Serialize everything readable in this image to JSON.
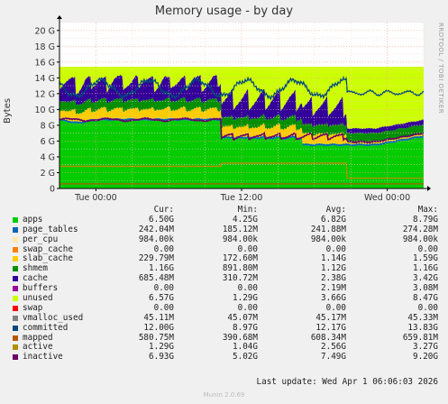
{
  "chart_data": {
    "type": "area",
    "title": "Memory usage - by day",
    "ylabel": "Bytes",
    "side_label": "RRDTOOL / TOBI OETIKER",
    "ylim": [
      0,
      21
    ],
    "yticks": [
      "0",
      "2 G",
      "4 G",
      "6 G",
      "8 G",
      "10 G",
      "12 G",
      "14 G",
      "16 G",
      "18 G",
      "20 G"
    ],
    "xlim_hours": [
      0,
      30
    ],
    "xticks": [
      {
        "label": "Tue 00:00",
        "hour": 3
      },
      {
        "label": "Tue 12:00",
        "hour": 15
      },
      {
        "label": "Wed 00:00",
        "hour": 27
      }
    ],
    "grid": true,
    "legend_columns": [
      "Cur:",
      "Min:",
      "Avg:",
      "Max:"
    ],
    "legend": [
      {
        "name": "apps",
        "color": "#00cc00",
        "cur": "6.50G",
        "min": "4.25G",
        "avg": "6.82G",
        "max": "8.79G"
      },
      {
        "name": "page_tables",
        "color": "#0066b3",
        "cur": "242.04M",
        "min": "185.12M",
        "avg": "241.88M",
        "max": "274.28M"
      },
      {
        "name": "per_cpu",
        "color": "#ffe9a8",
        "cur": "984.00k",
        "min": "984.00k",
        "avg": "984.00k",
        "max": "984.00k"
      },
      {
        "name": "swap_cache",
        "color": "#ff8000",
        "cur": "0.00",
        "min": "0.00",
        "avg": "0.00",
        "max": "0.00"
      },
      {
        "name": "slab_cache",
        "color": "#ffcc00",
        "cur": "229.79M",
        "min": "172.60M",
        "avg": "1.14G",
        "max": "1.59G"
      },
      {
        "name": "shmem",
        "color": "#008f00",
        "cur": "1.16G",
        "min": "891.80M",
        "avg": "1.12G",
        "max": "1.16G"
      },
      {
        "name": "cache",
        "color": "#330099",
        "cur": "685.48M",
        "min": "310.72M",
        "avg": "2.38G",
        "max": "3.42G"
      },
      {
        "name": "buffers",
        "color": "#990099",
        "cur": "0.00",
        "min": "0.00",
        "avg": "2.19M",
        "max": "3.08M"
      },
      {
        "name": "unused",
        "color": "#ccff00",
        "cur": "6.57G",
        "min": "1.29G",
        "avg": "3.66G",
        "max": "8.47G"
      },
      {
        "name": "swap",
        "color": "#ff0000",
        "cur": "0.00",
        "min": "0.00",
        "avg": "0.00",
        "max": "0.00"
      },
      {
        "name": "vmalloc_used",
        "color": "#808080",
        "cur": "45.11M",
        "min": "45.07M",
        "avg": "45.17M",
        "max": "45.33M"
      },
      {
        "name": "committed",
        "color": "#00487d",
        "cur": "12.00G",
        "min": "8.97G",
        "avg": "12.17G",
        "max": "13.83G"
      },
      {
        "name": "mapped",
        "color": "#b35a00",
        "cur": "580.75M",
        "min": "390.68M",
        "avg": "608.34M",
        "max": "659.81M"
      },
      {
        "name": "active",
        "color": "#b38f00",
        "cur": "1.29G",
        "min": "1.04G",
        "avg": "2.56G",
        "max": "3.27G"
      },
      {
        "name": "inactive",
        "color": "#6b006b",
        "cur": "6.93G",
        "min": "5.02G",
        "avg": "7.49G",
        "max": "9.20G"
      }
    ],
    "series_profile": {
      "apps_day1": 8.6,
      "apps_day2": 6.2,
      "apps_night": 5.4,
      "apps_end": 6.5,
      "total_memory": 15.4,
      "drop_hour": 13.3,
      "restart_hour": 23.7,
      "cache_peak": 14.2,
      "committed_high": 12.4,
      "active_day1": 2.8,
      "active_day2": 3.2,
      "active_end": 1.3
    }
  },
  "footer": {
    "last_update": "Last update:  Wed Apr  1 06:06:03 2026",
    "munin": "Munin 2.0.69"
  }
}
